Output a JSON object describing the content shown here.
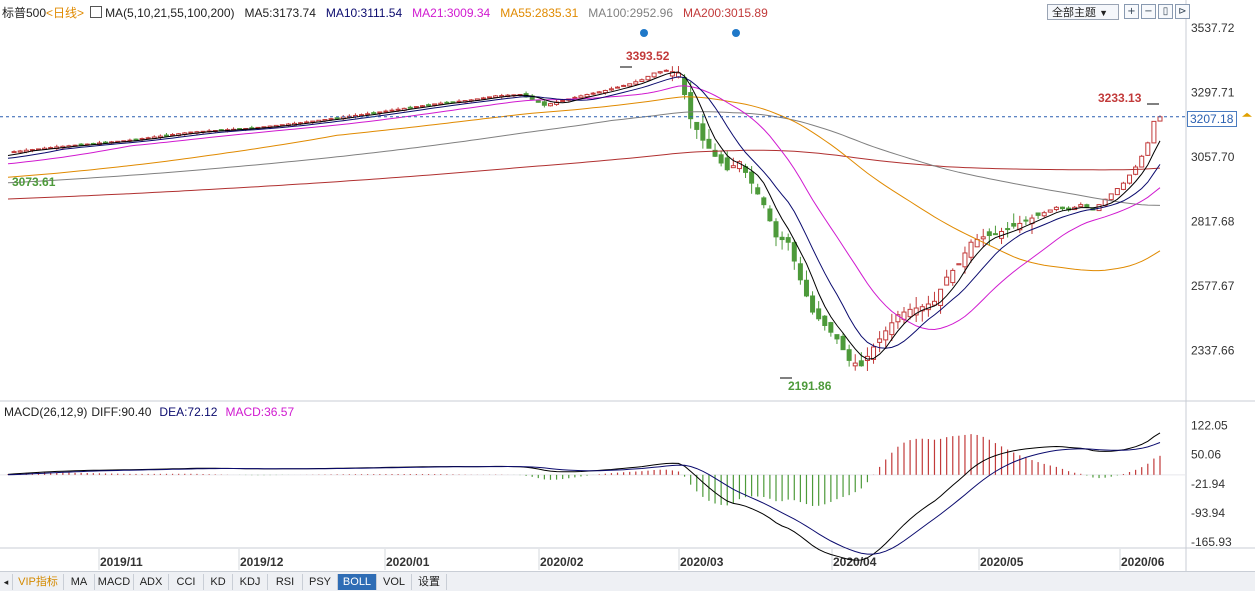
{
  "header": {
    "symbol": "标普500",
    "period": "<日线>",
    "ma_label": "MA(5,10,21,55,100,200)",
    "ma5": "MA5:3173.74",
    "ma10": "MA10:3111.54",
    "ma21": "MA21:3009.34",
    "ma55": "MA55:2835.31",
    "ma100": "MA100:2952.96",
    "ma200": "MA200:3015.89"
  },
  "toolbar": {
    "theme_label": "全部主题",
    "theme_caret": "▼",
    "btn1": "+",
    "btn2": "−",
    "btn3": "▯",
    "btn4": "⊳"
  },
  "macd_header": {
    "label": "MACD(26,12,9)",
    "diff": "DIFF:90.40",
    "dea": "DEA:72.12",
    "macd": "MACD:36.57"
  },
  "price_tag": "3207.18",
  "tabs": [
    "VIP指标",
    "MA",
    "MACD",
    "ADX",
    "CCI",
    "KD",
    "KDJ",
    "RSI",
    "PSY",
    "BOLL",
    "VOL",
    "设置"
  ],
  "active_tab": "BOLL",
  "colors": {
    "up": "#c23a3a",
    "down": "#4d9a3a",
    "ma5": "#000000",
    "ma10": "#0b0b6e",
    "ma21": "#d01ad0",
    "ma55": "#e08a00",
    "ma100": "#808080",
    "ma200": "#b03030",
    "dot": "#1f78c8"
  },
  "chart_data": [
    {
      "type": "candlestick",
      "title": "标普500",
      "xlabels": [
        "2019/11",
        "2019/12",
        "2020/01",
        "2020/02",
        "2020/03",
        "2020/04",
        "2020/05",
        "2020/06"
      ],
      "yticks": [
        "3537.72",
        "3297.71",
        "3057.70",
        "2817.68",
        "2577.67",
        "2337.66"
      ],
      "ylim": [
        2160,
        3560
      ],
      "current_price": 3207.18,
      "annotations": [
        "3393.52",
        "2191.86",
        "3233.13",
        "3073.61"
      ],
      "event_dates": [
        "2020/02",
        "2020/03"
      ]
    },
    {
      "type": "macd",
      "yticks": [
        "122.05",
        "50.06",
        "-21.94",
        "-93.94",
        "-165.93"
      ],
      "ylim": [
        -190,
        140
      ],
      "diff": 90.4,
      "dea": 72.12,
      "macd": 36.57
    }
  ]
}
